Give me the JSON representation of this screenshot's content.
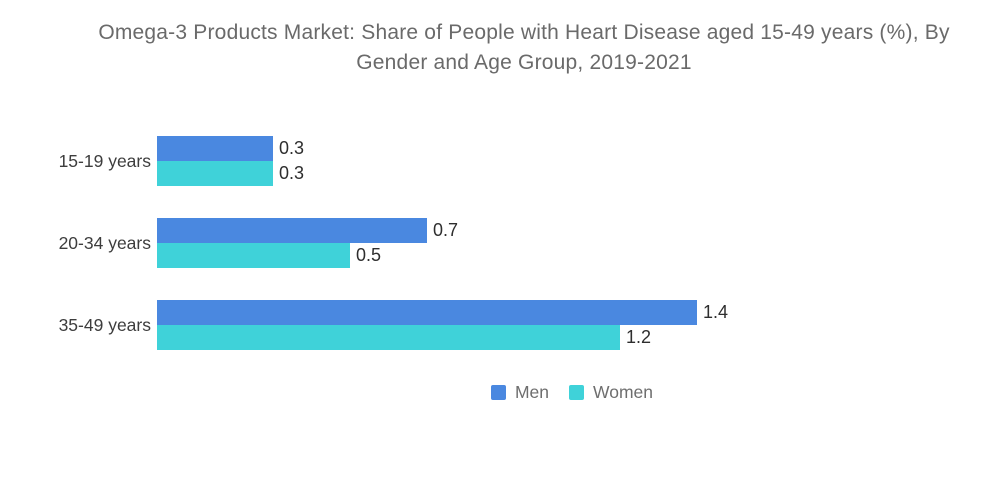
{
  "title": {
    "line1": "Omega-3 Products Market: Share of People with Heart Disease aged 15-49 years (%), By",
    "line2": "Gender and Age Group, 2019-2021"
  },
  "chart_data": {
    "type": "bar",
    "orientation": "horizontal",
    "title": "Omega-3 Products Market: Share of People with Heart Disease aged 15-49 years (%), By Gender and Age Group, 2019-2021",
    "categories": [
      "15-19 years",
      "20-34 years",
      "35-49 years"
    ],
    "series": [
      {
        "name": "Men",
        "color": "#4A88E0",
        "values": [
          0.3,
          0.7,
          1.4
        ]
      },
      {
        "name": "Women",
        "color": "#3FD2D9",
        "values": [
          0.3,
          0.5,
          1.2
        ]
      }
    ],
    "xlim": [
      0,
      1.4
    ],
    "value_labels_shown": true,
    "legend_entries": [
      "Men",
      "Women"
    ],
    "legend_position": "bottom",
    "grid": false,
    "axes_visible": false
  },
  "colors": {
    "background": "#FFFFFF",
    "title_text": "#6A6A6A",
    "category_text": "#3D3D3D",
    "value_text": "#2E2E2E",
    "legend_text": "#6E6E6E",
    "men_bar": "#4A88E0",
    "women_bar": "#3FD2D9"
  }
}
